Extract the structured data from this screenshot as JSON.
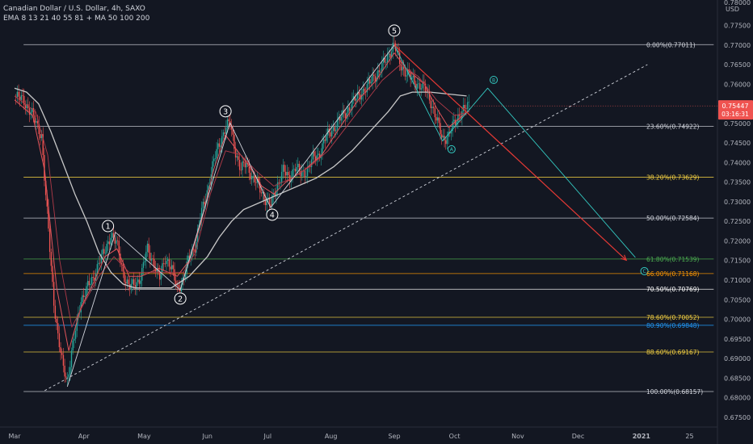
{
  "header": {
    "title": "Canadian Dollar / U.S. Dollar, 4h, SAXO",
    "indicators": "EMA 8 13 21 40 55 81 + MA 50 100 200"
  },
  "colors": {
    "background": "#131722",
    "axis_text": "#b2b5be",
    "candle_up": "#26a69a",
    "candle_down": "#ef5350",
    "ma_slow": "#c8c8c8",
    "ema_fast": "#e0545a",
    "wave_lines": "#d1d4dc",
    "projection_cyan": "#33c8c0",
    "projection_red": "#e53935",
    "price_label_bg": "#ef5350"
  },
  "chart_data": {
    "type": "candlestick",
    "title": "Canadian Dollar / U.S. Dollar, 4h, SAXO",
    "ylim": [
      0.6725,
      0.7815
    ],
    "x_range": [
      0,
      23.2
    ],
    "y_axis": {
      "unit_label": "USD",
      "top_tick": "0.78000",
      "ticks": [
        "0.77500",
        "0.77000",
        "0.76500",
        "0.76000",
        "0.75500",
        "0.75000",
        "0.74500",
        "0.74000",
        "0.73500",
        "0.73000",
        "0.72500",
        "0.72000",
        "0.71500",
        "0.71000",
        "0.70500",
        "0.70000",
        "0.69500",
        "0.69000",
        "0.68500",
        "0.68000",
        "0.67500"
      ]
    },
    "x_ticks": [
      {
        "label": "Mar",
        "x": 0
      },
      {
        "label": "Apr",
        "x": 2.3
      },
      {
        "label": "May",
        "x": 4.3
      },
      {
        "label": "Jun",
        "x": 6.4
      },
      {
        "label": "Jul",
        "x": 8.4
      },
      {
        "label": "Aug",
        "x": 10.5
      },
      {
        "label": "Sep",
        "x": 12.6
      },
      {
        "label": "Oct",
        "x": 14.6
      },
      {
        "label": "Nov",
        "x": 16.7
      },
      {
        "label": "Dec",
        "x": 18.7
      },
      {
        "label": "2021",
        "x": 20.8
      },
      {
        "label": "25",
        "x": 22.4
      }
    ],
    "current_price": {
      "value": 0.75447,
      "label": "0.75447",
      "countdown": "03:16:31"
    },
    "fib_levels": [
      {
        "label": "0.00%(0.77011)",
        "value": 0.77011,
        "color": "#d1d4dc"
      },
      {
        "label": "23.60%(0.74922)",
        "value": 0.74922,
        "color": "#d1d4dc"
      },
      {
        "label": "38.20%(0.73629)",
        "value": 0.73629,
        "color": "#f5d142"
      },
      {
        "label": "50.00%(0.72584)",
        "value": 0.72584,
        "color": "#d1d4dc"
      },
      {
        "label": "61.80%(0.71539)",
        "value": 0.71539,
        "color": "#4caf50"
      },
      {
        "label": "66.00%(0.71168)",
        "value": 0.71168,
        "color": "#ff9800"
      },
      {
        "label": "70.50%(0.70769)",
        "value": 0.70769,
        "color": "#ffffff"
      },
      {
        "label": "78.60%(0.70052)",
        "value": 0.70052,
        "color": "#f5d142"
      },
      {
        "label": "80.90%(0.69848)",
        "value": 0.69848,
        "color": "#2196f3"
      },
      {
        "label": "88.60%(0.69167)",
        "value": 0.69167,
        "color": "#f5d142"
      },
      {
        "label": "100.00%(0.68157)",
        "value": 0.68157,
        "color": "#d1d4dc"
      }
    ],
    "fib_x_start": 0.3,
    "fib_x_end": 23.2,
    "wave_labels": [
      {
        "label": "1",
        "x": 3.1,
        "y": 0.7238
      },
      {
        "label": "2",
        "x": 5.5,
        "y": 0.7053
      },
      {
        "label": "3",
        "x": 7.0,
        "y": 0.7531
      },
      {
        "label": "4",
        "x": 8.55,
        "y": 0.7267
      },
      {
        "label": "5",
        "x": 12.6,
        "y": 0.7737
      },
      {
        "label": "A",
        "x": 14.5,
        "y": 0.7434,
        "style": "cyan"
      },
      {
        "label": "B",
        "x": 15.9,
        "y": 0.7611,
        "style": "cyan"
      },
      {
        "label": "C",
        "x": 20.9,
        "y": 0.7123,
        "style": "cyan"
      }
    ],
    "wave_path": [
      [
        1.75,
        0.6828
      ],
      [
        3.35,
        0.7222
      ],
      [
        5.5,
        0.7075
      ],
      [
        7.15,
        0.7502
      ],
      [
        8.5,
        0.7285
      ],
      [
        12.6,
        0.77
      ]
    ],
    "abc_path": [
      [
        12.6,
        0.77
      ],
      [
        14.2,
        0.7455
      ],
      [
        15.7,
        0.759
      ],
      [
        20.6,
        0.7158
      ]
    ],
    "red_projection": [
      [
        12.6,
        0.77
      ],
      [
        20.3,
        0.7151
      ]
    ],
    "trendline": [
      [
        1.0,
        0.6818
      ],
      [
        21.0,
        0.765
      ]
    ],
    "close_path": [
      [
        0,
        0.7568
      ],
      [
        0.3,
        0.756
      ],
      [
        0.6,
        0.752
      ],
      [
        0.9,
        0.747
      ],
      [
        1.0,
        0.735
      ],
      [
        1.15,
        0.72
      ],
      [
        1.3,
        0.705
      ],
      [
        1.45,
        0.695
      ],
      [
        1.6,
        0.688
      ],
      [
        1.75,
        0.6845
      ],
      [
        1.9,
        0.692
      ],
      [
        2.05,
        0.698
      ],
      [
        2.2,
        0.705
      ],
      [
        2.4,
        0.708
      ],
      [
        2.6,
        0.71
      ],
      [
        2.8,
        0.715
      ],
      [
        3.0,
        0.717
      ],
      [
        3.2,
        0.722
      ],
      [
        3.4,
        0.719
      ],
      [
        3.6,
        0.712
      ],
      [
        3.8,
        0.708
      ],
      [
        4.0,
        0.709
      ],
      [
        4.2,
        0.711
      ],
      [
        4.4,
        0.718
      ],
      [
        4.6,
        0.715
      ],
      [
        4.8,
        0.71
      ],
      [
        5.0,
        0.716
      ],
      [
        5.2,
        0.713
      ],
      [
        5.4,
        0.708
      ],
      [
        5.6,
        0.71
      ],
      [
        5.8,
        0.716
      ],
      [
        6.0,
        0.719
      ],
      [
        6.2,
        0.727
      ],
      [
        6.4,
        0.733
      ],
      [
        6.6,
        0.74
      ],
      [
        6.8,
        0.745
      ],
      [
        7.0,
        0.749
      ],
      [
        7.15,
        0.75
      ],
      [
        7.3,
        0.744
      ],
      [
        7.5,
        0.738
      ],
      [
        7.7,
        0.74
      ],
      [
        7.9,
        0.736
      ],
      [
        8.1,
        0.734
      ],
      [
        8.3,
        0.731
      ],
      [
        8.5,
        0.729
      ],
      [
        8.7,
        0.734
      ],
      [
        8.9,
        0.738
      ],
      [
        9.1,
        0.736
      ],
      [
        9.3,
        0.739
      ],
      [
        9.5,
        0.737
      ],
      [
        9.7,
        0.738
      ],
      [
        9.9,
        0.741
      ],
      [
        10.1,
        0.742
      ],
      [
        10.3,
        0.746
      ],
      [
        10.5,
        0.748
      ],
      [
        10.7,
        0.75
      ],
      [
        10.9,
        0.752
      ],
      [
        11.1,
        0.754
      ],
      [
        11.3,
        0.756
      ],
      [
        11.5,
        0.758
      ],
      [
        11.7,
        0.759
      ],
      [
        11.9,
        0.762
      ],
      [
        12.1,
        0.763
      ],
      [
        12.3,
        0.766
      ],
      [
        12.5,
        0.769
      ],
      [
        12.6,
        0.77
      ],
      [
        12.8,
        0.765
      ],
      [
        13.0,
        0.763
      ],
      [
        13.2,
        0.761
      ],
      [
        13.4,
        0.76
      ],
      [
        13.6,
        0.759
      ],
      [
        13.8,
        0.756
      ],
      [
        14.0,
        0.751
      ],
      [
        14.2,
        0.746
      ],
      [
        14.4,
        0.747
      ],
      [
        14.6,
        0.75
      ],
      [
        14.8,
        0.753
      ],
      [
        15.0,
        0.754
      ],
      [
        15.1,
        0.7545
      ]
    ],
    "series": [
      {
        "kind": "ma_slow",
        "points": [
          [
            0,
            0.759
          ],
          [
            0.4,
            0.758
          ],
          [
            0.8,
            0.755
          ],
          [
            1.2,
            0.748
          ],
          [
            1.6,
            0.74
          ],
          [
            2.0,
            0.732
          ],
          [
            2.4,
            0.725
          ],
          [
            2.8,
            0.717
          ],
          [
            3.2,
            0.712
          ],
          [
            3.6,
            0.709
          ],
          [
            4.0,
            0.708
          ],
          [
            4.6,
            0.708
          ],
          [
            5.2,
            0.708
          ],
          [
            5.8,
            0.711
          ],
          [
            6.4,
            0.716
          ],
          [
            6.8,
            0.721
          ],
          [
            7.2,
            0.725
          ],
          [
            7.6,
            0.728
          ],
          [
            8.2,
            0.73
          ],
          [
            8.8,
            0.732
          ],
          [
            9.4,
            0.734
          ],
          [
            10.0,
            0.736
          ],
          [
            10.6,
            0.739
          ],
          [
            11.2,
            0.743
          ],
          [
            11.8,
            0.748
          ],
          [
            12.4,
            0.753
          ],
          [
            12.8,
            0.757
          ],
          [
            13.2,
            0.758
          ],
          [
            13.8,
            0.758
          ],
          [
            14.4,
            0.7575
          ],
          [
            15.0,
            0.757
          ]
        ]
      },
      {
        "kind": "ema_fast",
        "points": [
          [
            0,
            0.756
          ],
          [
            0.6,
            0.752
          ],
          [
            1.0,
            0.738
          ],
          [
            1.4,
            0.708
          ],
          [
            1.8,
            0.692
          ],
          [
            2.2,
            0.703
          ],
          [
            2.6,
            0.709
          ],
          [
            3.0,
            0.716
          ],
          [
            3.4,
            0.718
          ],
          [
            3.8,
            0.711
          ],
          [
            4.2,
            0.711
          ],
          [
            4.8,
            0.713
          ],
          [
            5.4,
            0.711
          ],
          [
            5.8,
            0.715
          ],
          [
            6.2,
            0.725
          ],
          [
            6.6,
            0.738
          ],
          [
            7.0,
            0.747
          ],
          [
            7.4,
            0.743
          ],
          [
            7.8,
            0.739
          ],
          [
            8.2,
            0.734
          ],
          [
            8.6,
            0.732
          ],
          [
            9.0,
            0.735
          ],
          [
            9.6,
            0.738
          ],
          [
            10.2,
            0.742
          ],
          [
            10.8,
            0.749
          ],
          [
            11.4,
            0.756
          ],
          [
            12.0,
            0.761
          ],
          [
            12.6,
            0.768
          ],
          [
            13.0,
            0.764
          ],
          [
            13.6,
            0.76
          ],
          [
            14.0,
            0.754
          ],
          [
            14.4,
            0.749
          ],
          [
            14.8,
            0.7515
          ],
          [
            15.1,
            0.7535
          ]
        ]
      },
      {
        "kind": "ema_mid",
        "points": [
          [
            0,
            0.757
          ],
          [
            0.7,
            0.753
          ],
          [
            1.1,
            0.742
          ],
          [
            1.5,
            0.715
          ],
          [
            1.9,
            0.698
          ],
          [
            2.3,
            0.704
          ],
          [
            2.8,
            0.711
          ],
          [
            3.3,
            0.716
          ],
          [
            3.8,
            0.712
          ],
          [
            4.4,
            0.712
          ],
          [
            5.0,
            0.712
          ],
          [
            5.6,
            0.712
          ],
          [
            6.0,
            0.717
          ],
          [
            6.5,
            0.732
          ],
          [
            7.0,
            0.743
          ],
          [
            7.5,
            0.742
          ],
          [
            8.0,
            0.738
          ],
          [
            8.6,
            0.734
          ],
          [
            9.2,
            0.736
          ],
          [
            9.8,
            0.739
          ],
          [
            10.4,
            0.743
          ],
          [
            11.0,
            0.749
          ],
          [
            11.6,
            0.755
          ],
          [
            12.2,
            0.761
          ],
          [
            12.8,
            0.765
          ],
          [
            13.4,
            0.762
          ],
          [
            14.0,
            0.756
          ],
          [
            14.6,
            0.752
          ],
          [
            15.1,
            0.753
          ]
        ]
      }
    ]
  }
}
